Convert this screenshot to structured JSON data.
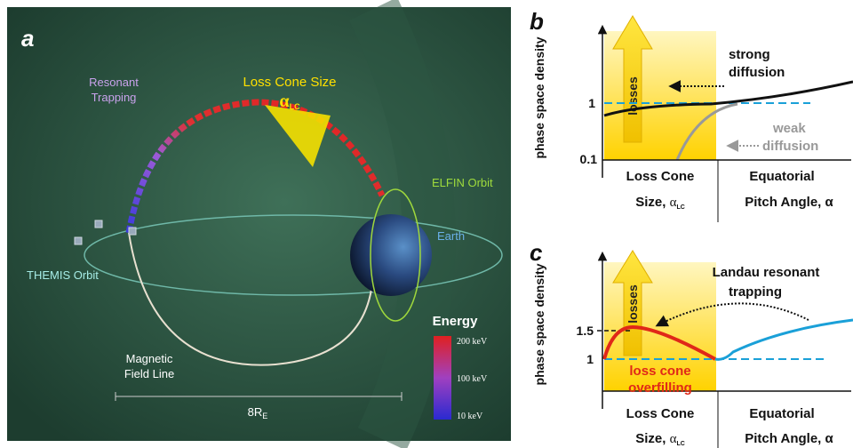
{
  "panel_a": {
    "label": "a",
    "resonant_trapping": [
      "Resonant",
      "Trapping"
    ],
    "loss_cone": {
      "title": "Loss Cone Size",
      "symbol": "α",
      "subscript": "LC"
    },
    "elfin_orbit": "ELFIN Orbit",
    "earth": "Earth",
    "themis_orbit": "THEMIS Orbit",
    "field_line": [
      "Magnetic",
      "Field Line"
    ],
    "scale": {
      "text": "8R",
      "subscript": "E"
    },
    "energy": {
      "title": "Energy",
      "labels": [
        "200 keV",
        "100 keV",
        "10 keV"
      ]
    }
  },
  "panel_b": {
    "label": "b",
    "y_label": "phase space density",
    "ticks": [
      "1",
      "0.1"
    ],
    "losses": "losses",
    "strong": [
      "strong",
      "diffusion"
    ],
    "weak": [
      "weak",
      "diffusion"
    ],
    "x_left": {
      "line1": "Loss Cone",
      "line2": "Size, ",
      "symbol": "α",
      "subscript": "LC"
    },
    "x_right": [
      "Equatorial",
      "Pitch Angle, α"
    ]
  },
  "panel_c": {
    "label": "c",
    "y_label": "phase space density",
    "ticks": [
      "1.5",
      "1"
    ],
    "losses": "losses",
    "landau": [
      "Landau resonant",
      "trapping"
    ],
    "overfilling": [
      "loss cone",
      "overfilling"
    ],
    "x_left": {
      "line1": "Loss Cone",
      "line2": "Size, ",
      "symbol": "α",
      "subscript": "LC"
    },
    "x_right": [
      "Equatorial",
      "Pitch Angle, α"
    ]
  }
}
